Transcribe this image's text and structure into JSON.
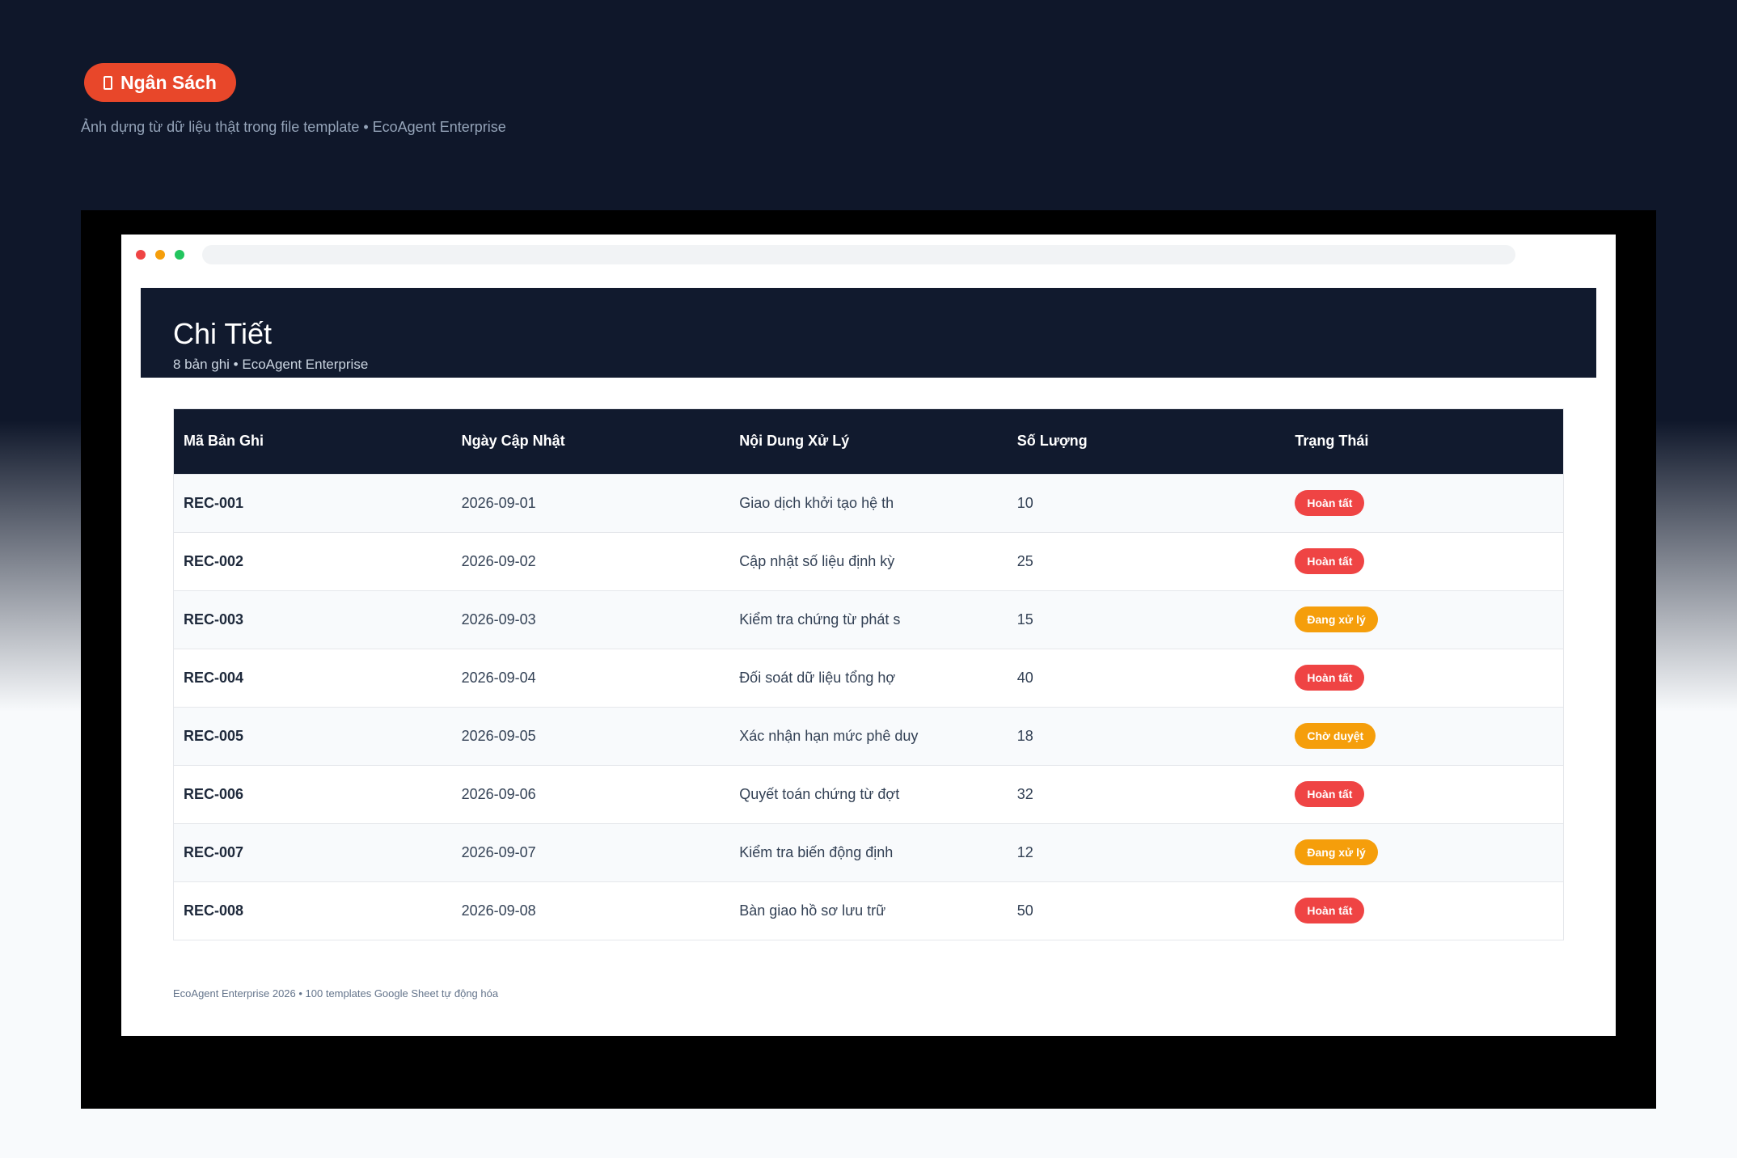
{
  "category_tag": {
    "label": "Ngân Sách",
    "icon": "clipboard-icon",
    "color": "#e8472a"
  },
  "page_subtitle": "Ảnh dựng từ dữ liệu thật trong file template • EcoAgent Enterprise",
  "sheet": {
    "title": "Chi Tiết",
    "subtitle": "8 bản ghi • EcoAgent Enterprise",
    "columns": [
      "Mã Bản Ghi",
      "Ngày Cập Nhật",
      "Nội Dung Xử Lý",
      "Số Lượng",
      "Trạng Thái"
    ],
    "rows": [
      {
        "code": "REC-001",
        "date": "2026-09-01",
        "content": "Giao dịch khởi tạo hệ th",
        "qty": "10",
        "status": "Hoàn tất",
        "status_color": "#ef4444"
      },
      {
        "code": "REC-002",
        "date": "2026-09-02",
        "content": "Cập nhật số liệu định kỳ",
        "qty": "25",
        "status": "Hoàn tất",
        "status_color": "#ef4444"
      },
      {
        "code": "REC-003",
        "date": "2026-09-03",
        "content": "Kiểm tra chứng từ phát s",
        "qty": "15",
        "status": "Đang xử lý",
        "status_color": "#f59e0b"
      },
      {
        "code": "REC-004",
        "date": "2026-09-04",
        "content": "Đối soát dữ liệu tổng hợ",
        "qty": "40",
        "status": "Hoàn tất",
        "status_color": "#ef4444"
      },
      {
        "code": "REC-005",
        "date": "2026-09-05",
        "content": "Xác nhận hạn mức phê duy",
        "qty": "18",
        "status": "Chờ duyệt",
        "status_color": "#f59e0b"
      },
      {
        "code": "REC-006",
        "date": "2026-09-06",
        "content": "Quyết toán chứng từ đợt",
        "qty": "32",
        "status": "Hoàn tất",
        "status_color": "#ef4444"
      },
      {
        "code": "REC-007",
        "date": "2026-09-07",
        "content": "Kiểm tra biến động định",
        "qty": "12",
        "status": "Đang xử lý",
        "status_color": "#f59e0b"
      },
      {
        "code": "REC-008",
        "date": "2026-09-08",
        "content": "Bàn giao hồ sơ lưu trữ",
        "qty": "50",
        "status": "Hoàn tất",
        "status_color": "#ef4444"
      }
    ]
  },
  "footer": "EcoAgent Enterprise 2026 • 100 templates Google Sheet tự động hóa"
}
